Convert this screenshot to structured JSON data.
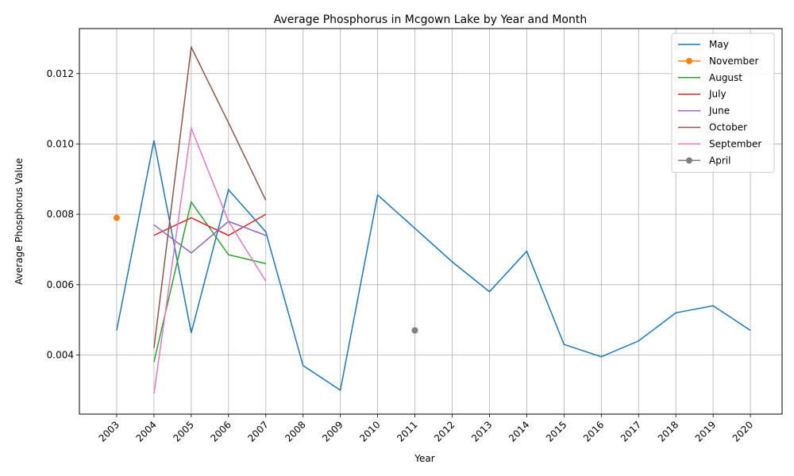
{
  "chart_data": {
    "type": "line",
    "title": "Average Phosphorus in Mcgown Lake by Year and Month",
    "xlabel": "Year",
    "ylabel": "Average Phosphorus Value",
    "xlim": [
      2002.0,
      2020.85
    ],
    "ylim": [
      0.00232,
      0.01328
    ],
    "x_ticks": [
      2003,
      2004,
      2005,
      2006,
      2007,
      2008,
      2009,
      2010,
      2011,
      2012,
      2013,
      2014,
      2015,
      2016,
      2017,
      2018,
      2019,
      2020
    ],
    "y_ticks": [
      0.004,
      0.006,
      0.008,
      0.01,
      0.012
    ],
    "y_tick_labels": [
      "0.004",
      "0.006",
      "0.008",
      "0.010",
      "0.012"
    ],
    "grid": true,
    "legend_position": "top-right",
    "series": [
      {
        "name": "May",
        "color": "#1f77b4",
        "marker": false,
        "x": [
          2003,
          2004,
          2005,
          2006,
          2007,
          2008,
          2009,
          2010,
          2011,
          2012,
          2013,
          2014,
          2015,
          2016,
          2017,
          2018,
          2019,
          2020
        ],
        "y": [
          0.0047,
          0.0101,
          0.00463,
          0.0087,
          0.0075,
          0.0037,
          0.003,
          0.00855,
          0.0076,
          0.00665,
          0.0058,
          0.00695,
          0.0043,
          0.00395,
          0.0044,
          0.0052,
          0.0054,
          0.0047
        ]
      },
      {
        "name": "November",
        "color": "#ff7f0e",
        "marker": true,
        "x": [
          2003
        ],
        "y": [
          0.0079
        ]
      },
      {
        "name": "August",
        "color": "#2ca02c",
        "marker": false,
        "x": [
          2004,
          2005,
          2006,
          2007
        ],
        "y": [
          0.0038,
          0.00835,
          0.00685,
          0.0066
        ]
      },
      {
        "name": "July",
        "color": "#d62728",
        "marker": false,
        "x": [
          2004,
          2005,
          2006,
          2007
        ],
        "y": [
          0.0074,
          0.0079,
          0.0074,
          0.008
        ]
      },
      {
        "name": "June",
        "color": "#9467bd",
        "marker": false,
        "x": [
          2004,
          2005,
          2006,
          2007
        ],
        "y": [
          0.0077,
          0.0069,
          0.0078,
          0.0074
        ]
      },
      {
        "name": "October",
        "color": "#8c564b",
        "marker": false,
        "x": [
          2004,
          2005,
          2006,
          2007
        ],
        "y": [
          0.0042,
          0.01275,
          0.0106,
          0.0084
        ]
      },
      {
        "name": "September",
        "color": "#e377c2",
        "marker": false,
        "x": [
          2004,
          2005,
          2006,
          2007
        ],
        "y": [
          0.0029,
          0.01045,
          0.0078,
          0.0061
        ]
      },
      {
        "name": "April",
        "color": "#7f7f7f",
        "marker": true,
        "x": [
          2011
        ],
        "y": [
          0.0047
        ]
      }
    ]
  }
}
